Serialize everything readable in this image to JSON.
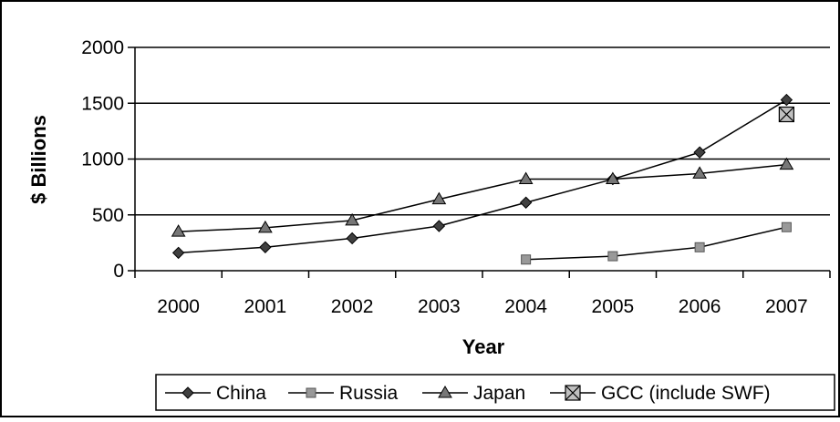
{
  "chart_data": {
    "type": "line",
    "title": "",
    "xlabel": "Year",
    "ylabel": "$ Billions",
    "categories": [
      "2000",
      "2001",
      "2002",
      "2003",
      "2004",
      "2005",
      "2006",
      "2007"
    ],
    "ylim": [
      0,
      2000
    ],
    "yticks": [
      0,
      500,
      1000,
      1500,
      2000
    ],
    "grid": true,
    "legend_position": "bottom",
    "series": [
      {
        "name": "China",
        "marker": "diamond",
        "values": [
          160,
          210,
          290,
          400,
          610,
          820,
          1060,
          1530
        ]
      },
      {
        "name": "Russia",
        "marker": "square",
        "values": [
          null,
          null,
          null,
          null,
          100,
          130,
          210,
          390
        ]
      },
      {
        "name": "Japan",
        "marker": "triangle",
        "values": [
          350,
          385,
          450,
          640,
          820,
          820,
          870,
          950
        ]
      },
      {
        "name": "GCC (include SWF)",
        "marker": "boxed-x",
        "values": [
          null,
          null,
          null,
          null,
          null,
          null,
          null,
          1400
        ]
      }
    ]
  },
  "colors": {
    "line": "#000000",
    "china_marker": "#404040",
    "russia_marker": "#999999",
    "japan_marker": "#777777",
    "gcc_marker": "#c0c0c0"
  }
}
